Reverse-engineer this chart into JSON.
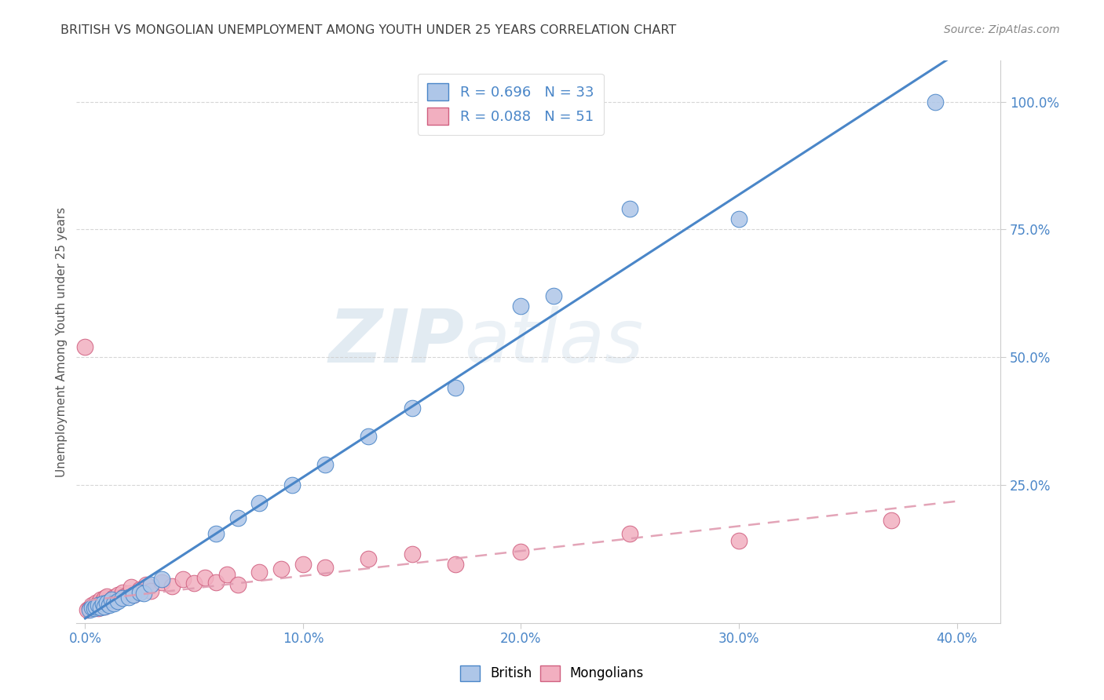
{
  "title": "BRITISH VS MONGOLIAN UNEMPLOYMENT AMONG YOUTH UNDER 25 YEARS CORRELATION CHART",
  "source_text": "Source: ZipAtlas.com",
  "ylabel": "Unemployment Among Youth under 25 years",
  "xlim": [
    -0.004,
    0.42
  ],
  "ylim": [
    -0.02,
    1.08
  ],
  "xtick_labels": [
    "0.0%",
    "10.0%",
    "20.0%",
    "30.0%",
    "40.0%"
  ],
  "xtick_vals": [
    0.0,
    0.1,
    0.2,
    0.3,
    0.4
  ],
  "ytick_labels": [
    "25.0%",
    "50.0%",
    "75.0%",
    "100.0%"
  ],
  "ytick_vals": [
    0.25,
    0.5,
    0.75,
    1.0
  ],
  "british_color": "#aec6e8",
  "mongolian_color": "#f2afc0",
  "british_edge_color": "#4a86c8",
  "mongolian_edge_color": "#d06080",
  "line_british_color": "#4a86c8",
  "line_mongolian_color": "#e09ab0",
  "legend_R_british": "R = 0.696",
  "legend_N_british": "N = 33",
  "legend_R_mongolian": "R = 0.088",
  "legend_N_mongolian": "N = 51",
  "watermark_zip": "ZIP",
  "watermark_atlas": "atlas",
  "british_x": [
    0.002,
    0.003,
    0.004,
    0.005,
    0.006,
    0.007,
    0.008,
    0.009,
    0.01,
    0.011,
    0.012,
    0.013,
    0.015,
    0.017,
    0.02,
    0.022,
    0.025,
    0.027,
    0.03,
    0.035,
    0.06,
    0.07,
    0.08,
    0.095,
    0.11,
    0.13,
    0.15,
    0.17,
    0.2,
    0.215,
    0.25,
    0.3,
    0.39
  ],
  "british_y": [
    0.005,
    0.01,
    0.008,
    0.012,
    0.015,
    0.01,
    0.018,
    0.012,
    0.02,
    0.015,
    0.025,
    0.018,
    0.022,
    0.028,
    0.03,
    0.035,
    0.04,
    0.038,
    0.055,
    0.065,
    0.155,
    0.185,
    0.215,
    0.25,
    0.29,
    0.345,
    0.4,
    0.44,
    0.6,
    0.62,
    0.79,
    0.77,
    1.0
  ],
  "mongolian_x": [
    0.001,
    0.002,
    0.003,
    0.003,
    0.004,
    0.004,
    0.005,
    0.005,
    0.006,
    0.006,
    0.007,
    0.007,
    0.008,
    0.008,
    0.009,
    0.009,
    0.01,
    0.01,
    0.011,
    0.012,
    0.013,
    0.014,
    0.015,
    0.016,
    0.017,
    0.018,
    0.02,
    0.021,
    0.022,
    0.025,
    0.028,
    0.03,
    0.035,
    0.04,
    0.045,
    0.05,
    0.055,
    0.06,
    0.065,
    0.07,
    0.08,
    0.09,
    0.1,
    0.11,
    0.13,
    0.15,
    0.17,
    0.2,
    0.25,
    0.3,
    0.37
  ],
  "mongolian_y": [
    0.005,
    0.008,
    0.01,
    0.015,
    0.008,
    0.012,
    0.01,
    0.02,
    0.008,
    0.018,
    0.012,
    0.025,
    0.015,
    0.022,
    0.012,
    0.028,
    0.018,
    0.032,
    0.02,
    0.025,
    0.03,
    0.022,
    0.035,
    0.028,
    0.04,
    0.032,
    0.038,
    0.05,
    0.035,
    0.045,
    0.055,
    0.042,
    0.06,
    0.052,
    0.065,
    0.058,
    0.068,
    0.06,
    0.075,
    0.055,
    0.08,
    0.085,
    0.095,
    0.088,
    0.105,
    0.115,
    0.095,
    0.12,
    0.155,
    0.14,
    0.18
  ],
  "outlier_mongolian_x": [
    0.0
  ],
  "outlier_mongolian_y": [
    0.52
  ],
  "grid_color": "#cccccc",
  "background_color": "#ffffff",
  "title_color": "#404040",
  "axis_label_color": "#555555",
  "tick_label_color": "#4a86c8",
  "right_tick_color": "#4a86c8"
}
